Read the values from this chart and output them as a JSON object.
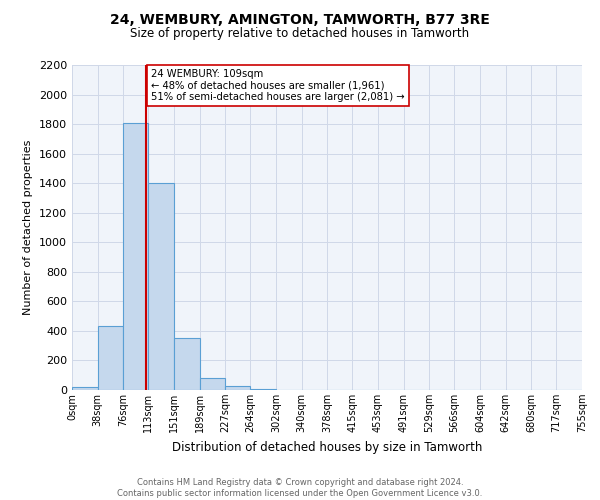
{
  "title": "24, WEMBURY, AMINGTON, TAMWORTH, B77 3RE",
  "subtitle": "Size of property relative to detached houses in Tamworth",
  "xlabel": "Distribution of detached houses by size in Tamworth",
  "ylabel": "Number of detached properties",
  "bar_edges": [
    0,
    38,
    76,
    113,
    151,
    189,
    227,
    264,
    302,
    340,
    378,
    415,
    453,
    491,
    529,
    566,
    604,
    642,
    680,
    717,
    755
  ],
  "bar_heights": [
    20,
    430,
    1810,
    1400,
    350,
    80,
    25,
    5,
    0,
    0,
    0,
    0,
    0,
    0,
    0,
    0,
    0,
    0,
    0,
    0
  ],
  "bar_color": "#c5d8ed",
  "bar_edge_color": "#5a9fd4",
  "property_value": 109,
  "property_label": "24 WEMBURY: 109sqm",
  "annotation_line1": "← 48% of detached houses are smaller (1,961)",
  "annotation_line2": "51% of semi-detached houses are larger (2,081) →",
  "vline_color": "#cc0000",
  "annotation_box_edge_color": "#cc0000",
  "ylim": [
    0,
    2200
  ],
  "yticks": [
    0,
    200,
    400,
    600,
    800,
    1000,
    1200,
    1400,
    1600,
    1800,
    2000,
    2200
  ],
  "xtick_labels": [
    "0sqm",
    "38sqm",
    "76sqm",
    "113sqm",
    "151sqm",
    "189sqm",
    "227sqm",
    "264sqm",
    "302sqm",
    "340sqm",
    "378sqm",
    "415sqm",
    "453sqm",
    "491sqm",
    "529sqm",
    "566sqm",
    "604sqm",
    "642sqm",
    "680sqm",
    "717sqm",
    "755sqm"
  ],
  "footer_line1": "Contains HM Land Registry data © Crown copyright and database right 2024.",
  "footer_line2": "Contains public sector information licensed under the Open Government Licence v3.0.",
  "grid_color": "#d0d8e8",
  "background_color": "#f0f4fa"
}
